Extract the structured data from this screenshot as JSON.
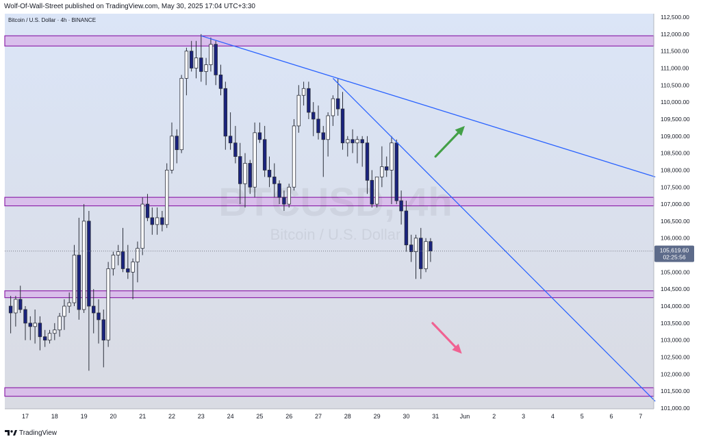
{
  "header": {
    "publisher_line": "Wolf-Of-Wall-Street published on TradingView.com, May 30, 2025 17:04 UTC+3:30",
    "symbol_line": "Bitcoin / U.S. Dollar · 4h · BINANCE"
  },
  "watermark": {
    "ticker": "BTCUSD, 4h",
    "name": "Bitcoin / U.S. Dollar"
  },
  "footer": {
    "brand": "TradingView"
  },
  "current_price": {
    "value": "105,619.60",
    "countdown": "02:25:56"
  },
  "colors": {
    "background_top": "#dbe5f7",
    "background_bottom": "#d9dbe3",
    "zone_fill": "#d8b8ea",
    "zone_border": "#8e24aa",
    "trendline": "#2962ff",
    "candle_up_body": "#ffffff",
    "candle_down_body": "#1a237e",
    "wick": "#2a2e39",
    "arrow_up": "#43a047",
    "arrow_down": "#f06292",
    "price_label_bg": "#5d6b8a"
  },
  "chart_data": {
    "type": "candlestick",
    "symbol": "Bitcoin / U.S. Dollar",
    "timeframe": "4h",
    "exchange": "BINANCE",
    "y_ticks": [
      "112,500.00",
      "112,000.00",
      "111,500.00",
      "111,000.00",
      "110,500.00",
      "110,000.00",
      "109,500.00",
      "109,000.00",
      "108,500.00",
      "108,000.00",
      "107,500.00",
      "107,000.00",
      "106,500.00",
      "106,000.00",
      "105,500.00",
      "105,000.00",
      "104,500.00",
      "104,000.00",
      "103,500.00",
      "103,000.00",
      "102,500.00",
      "102,000.00",
      "101,500.00",
      "101,000.00"
    ],
    "y_tick_values": [
      112500,
      112000,
      111500,
      111000,
      110500,
      110000,
      109500,
      109000,
      108500,
      108000,
      107500,
      107000,
      106500,
      106000,
      105500,
      105000,
      104500,
      104000,
      103500,
      103000,
      102500,
      102000,
      101500,
      101000
    ],
    "ylim": [
      101000,
      112500
    ],
    "x_ticks": [
      "17",
      "18",
      "19",
      "20",
      "21",
      "22",
      "23",
      "24",
      "25",
      "26",
      "27",
      "28",
      "29",
      "30",
      "31",
      "Jun",
      "2",
      "3",
      "4",
      "5",
      "6",
      "7"
    ],
    "x_tick_days": [
      0,
      1,
      2,
      3,
      4,
      5,
      6,
      7,
      8,
      9,
      10,
      11,
      12,
      13,
      14,
      15,
      16,
      17,
      18,
      19,
      20,
      21
    ],
    "x_day0_label": "17",
    "candles": [
      [
        -0.5,
        104000,
        104300,
        103200,
        103800
      ],
      [
        -0.33,
        103800,
        104300,
        103400,
        104200
      ],
      [
        -0.17,
        104200,
        104600,
        103800,
        103900
      ],
      [
        0,
        103900,
        104000,
        103000,
        103500
      ],
      [
        0.17,
        103500,
        103700,
        103000,
        103400
      ],
      [
        0.33,
        103400,
        103900,
        102900,
        103500
      ],
      [
        0.5,
        103500,
        103700,
        102700,
        103100
      ],
      [
        0.67,
        103100,
        103300,
        102800,
        103000
      ],
      [
        0.83,
        103000,
        103300,
        102900,
        103200
      ],
      [
        1,
        103200,
        103500,
        103000,
        103300
      ],
      [
        1.17,
        103300,
        103800,
        103100,
        103700
      ],
      [
        1.33,
        103700,
        104200,
        103300,
        104000
      ],
      [
        1.5,
        104000,
        104400,
        103800,
        104100
      ],
      [
        1.67,
        104100,
        105800,
        104000,
        105500
      ],
      [
        1.83,
        105500,
        106600,
        103600,
        103900
      ],
      [
        2,
        103900,
        107000,
        103800,
        106500
      ],
      [
        2.17,
        106500,
        106800,
        102100,
        104000
      ],
      [
        2.33,
        104000,
        104500,
        103200,
        103800
      ],
      [
        2.5,
        103800,
        104200,
        102900,
        103600
      ],
      [
        2.67,
        103600,
        103900,
        102200,
        103000
      ],
      [
        2.83,
        103000,
        105300,
        102800,
        105100
      ],
      [
        3,
        105100,
        105600,
        104900,
        105500
      ],
      [
        3.17,
        105500,
        105800,
        105200,
        105600
      ],
      [
        3.33,
        105600,
        106300,
        105000,
        105100
      ],
      [
        3.5,
        105100,
        105800,
        104800,
        105000
      ],
      [
        3.67,
        105000,
        105400,
        104200,
        105300
      ],
      [
        3.83,
        105300,
        105900,
        104700,
        105700
      ],
      [
        4,
        105700,
        107200,
        105500,
        107000
      ],
      [
        4.17,
        107000,
        107300,
        106500,
        106600
      ],
      [
        4.33,
        106600,
        106900,
        106100,
        106400
      ],
      [
        4.5,
        106400,
        106900,
        106100,
        106600
      ],
      [
        4.67,
        106600,
        106800,
        106200,
        106400
      ],
      [
        4.83,
        106400,
        108200,
        106300,
        108000
      ],
      [
        5,
        108000,
        109400,
        107900,
        109000
      ],
      [
        5.17,
        109000,
        109200,
        108200,
        108600
      ],
      [
        5.33,
        108600,
        110800,
        108500,
        110700
      ],
      [
        5.5,
        110700,
        111600,
        110200,
        111500
      ],
      [
        5.67,
        111500,
        111800,
        110900,
        111000
      ],
      [
        5.83,
        111000,
        111800,
        110700,
        111300
      ],
      [
        6,
        111300,
        112000,
        110600,
        110900
      ],
      [
        6.17,
        110900,
        111300,
        110500,
        111100
      ],
      [
        6.33,
        111100,
        111900,
        110900,
        111700
      ],
      [
        6.5,
        111700,
        111800,
        110500,
        110800
      ],
      [
        6.67,
        110800,
        111100,
        110200,
        110400
      ],
      [
        6.83,
        110400,
        110600,
        108600,
        109000
      ],
      [
        7,
        109000,
        109700,
        108600,
        108800
      ],
      [
        7.17,
        108800,
        109300,
        108200,
        108400
      ],
      [
        7.33,
        108400,
        108800,
        107000,
        107600
      ],
      [
        7.5,
        107600,
        108500,
        106900,
        108200
      ],
      [
        7.67,
        108200,
        108300,
        107300,
        107500
      ],
      [
        7.83,
        107500,
        109400,
        107200,
        109100
      ],
      [
        8,
        109100,
        109400,
        108800,
        108900
      ],
      [
        8.17,
        108900,
        109300,
        107800,
        108000
      ],
      [
        8.33,
        108000,
        108400,
        107500,
        107800
      ],
      [
        8.5,
        107800,
        108200,
        107200,
        107600
      ],
      [
        8.67,
        107600,
        107700,
        107000,
        107200
      ],
      [
        8.83,
        107200,
        107400,
        106800,
        107000
      ],
      [
        9,
        107000,
        107600,
        106900,
        107500
      ],
      [
        9.17,
        107500,
        109500,
        107400,
        109300
      ],
      [
        9.33,
        109300,
        110500,
        109100,
        110200
      ],
      [
        9.5,
        110200,
        110600,
        109900,
        110400
      ],
      [
        9.67,
        110400,
        110600,
        109500,
        109700
      ],
      [
        9.83,
        109700,
        110000,
        109000,
        109500
      ],
      [
        10,
        109500,
        109900,
        108900,
        109100
      ],
      [
        10.17,
        109100,
        109300,
        107800,
        108900
      ],
      [
        10.33,
        108900,
        109700,
        108400,
        109600
      ],
      [
        10.5,
        109600,
        110200,
        109300,
        110100
      ],
      [
        10.67,
        110100,
        110700,
        109600,
        109800
      ],
      [
        10.83,
        109800,
        110300,
        108600,
        108800
      ],
      [
        11,
        108800,
        109000,
        108400,
        108900
      ],
      [
        11.17,
        108900,
        109200,
        108500,
        108800
      ],
      [
        11.33,
        108800,
        109000,
        108200,
        108900
      ],
      [
        11.5,
        108900,
        109000,
        108100,
        108800
      ],
      [
        11.67,
        108800,
        109000,
        107300,
        107700
      ],
      [
        11.83,
        107700,
        108000,
        106900,
        107000
      ],
      [
        12,
        107000,
        107700,
        106900,
        107800
      ],
      [
        12.17,
        107800,
        108700,
        107500,
        108100
      ],
      [
        12.33,
        108100,
        108400,
        107800,
        108000
      ],
      [
        12.5,
        108000,
        109000,
        107000,
        108800
      ],
      [
        12.67,
        108800,
        108900,
        107000,
        107100
      ],
      [
        12.83,
        107100,
        107400,
        106400,
        106800
      ],
      [
        13,
        106800,
        107100,
        105600,
        105800
      ],
      [
        13.17,
        105800,
        106100,
        105300,
        105600
      ],
      [
        13.33,
        105600,
        106100,
        104800,
        106000
      ],
      [
        13.5,
        106000,
        106300,
        104800,
        105100
      ],
      [
        13.67,
        105100,
        106000,
        105000,
        105900
      ],
      [
        13.83,
        105900,
        106000,
        105300,
        105620
      ]
    ],
    "zones": [
      {
        "low": 111650,
        "high": 111950
      },
      {
        "low": 106950,
        "high": 107200
      },
      {
        "low": 104250,
        "high": 104450
      },
      {
        "low": 101350,
        "high": 101600
      }
    ],
    "trendlines": [
      {
        "x1_day": 6.0,
        "y1": 111950,
        "x2_day": 21.5,
        "y2": 107800
      },
      {
        "x1_day": 10.5,
        "y1": 110700,
        "x2_day": 21.5,
        "y2": 101200
      }
    ],
    "arrows": [
      {
        "direction": "up",
        "from_day": 14.0,
        "from_price": 108400,
        "to_day": 15.0,
        "to_price": 109300
      },
      {
        "direction": "down",
        "from_day": 13.9,
        "from_price": 103500,
        "to_day": 14.9,
        "to_price": 102600
      }
    ],
    "last_price": 105619.6,
    "title": "",
    "xlabel": "",
    "ylabel": ""
  }
}
